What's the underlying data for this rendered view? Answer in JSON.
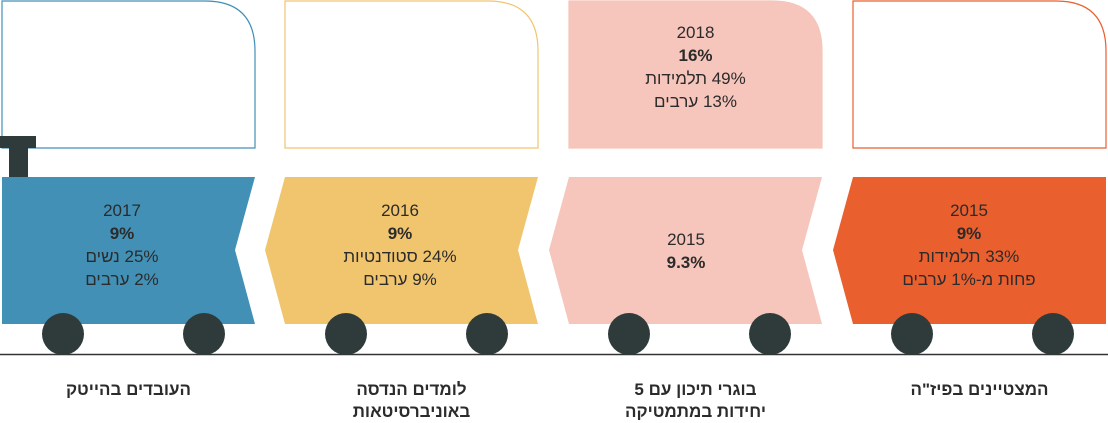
{
  "colors": {
    "blue": "#4390b6",
    "yellow": "#f0c56e",
    "pink": "#f6c5bb",
    "orange": "#ea5f2e",
    "wheel": "#2f3b3b",
    "ground": "#333333"
  },
  "cars": [
    {
      "id": "hitech",
      "label": "העובדים בהייטק",
      "car_lines": [
        "2017",
        "9%",
        "25% נשים",
        "2% ערבים"
      ],
      "window_lines": []
    },
    {
      "id": "engineering",
      "label_line1": "לומדים הנדסה",
      "label_line2": "באוניברסיטאות",
      "car_lines": [
        "2016",
        "9%",
        "24% סטודנטיות",
        "9% ערבים"
      ],
      "window_lines": []
    },
    {
      "id": "math",
      "label_line1": "בוגרי תיכון עם 5",
      "label_line2": "יחידות במתמטיקה",
      "car_lines": [
        "2015",
        "9.3%"
      ],
      "window_lines": [
        "2018",
        "16%",
        "49% תלמידות",
        "13% ערבים"
      ]
    },
    {
      "id": "physics",
      "label": "המצטיינים בפיז\"ה",
      "car_lines": [
        "2015",
        "9%",
        "33% תלמידות",
        "פחות מ-1% ערבים"
      ],
      "window_lines": []
    }
  ]
}
